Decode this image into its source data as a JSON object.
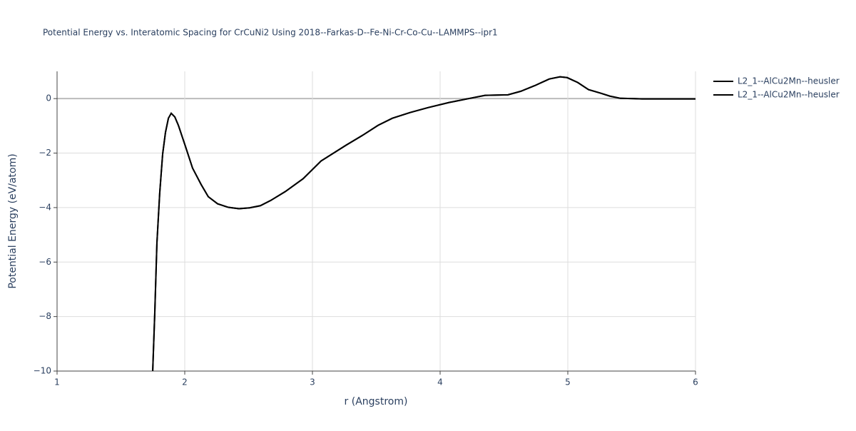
{
  "chart_data": {
    "type": "line",
    "title": "Potential Energy vs. Interatomic Spacing for CrCuNi2 Using 2018--Farkas-D--Fe-Ni-Cr-Co-Cu--LAMMPS--ipr1",
    "x_label": "r (Angstrom)",
    "y_label": "Potential Energy (eV/atom)",
    "x": [
      1.749,
      1.765,
      1.782,
      1.804,
      1.827,
      1.849,
      1.872,
      1.894,
      1.922,
      1.95,
      2.006,
      2.061,
      2.128,
      2.184,
      2.257,
      2.341,
      2.425,
      2.508,
      2.592,
      2.676,
      2.788,
      2.927,
      3.067,
      3.263,
      3.402,
      3.514,
      3.626,
      3.765,
      3.905,
      4.073,
      4.212,
      4.352,
      4.531,
      4.632,
      4.743,
      4.855,
      4.939,
      4.995,
      5.078,
      5.162,
      5.257,
      5.33,
      5.413,
      5.581,
      6.0
    ],
    "series": [
      {
        "name": "L2_1--AlCu2Mn--heusler",
        "color": "#000000",
        "values": [
          -10,
          -7.9,
          -5.3,
          -3.46,
          -2.03,
          -1.24,
          -0.72,
          -0.54,
          -0.67,
          -0.98,
          -1.76,
          -2.55,
          -3.15,
          -3.6,
          -3.86,
          -3.99,
          -4.04,
          -4.01,
          -3.93,
          -3.73,
          -3.41,
          -2.94,
          -2.29,
          -1.71,
          -1.32,
          -0.98,
          -0.72,
          -0.51,
          -0.33,
          -0.14,
          -0.01,
          0.12,
          0.14,
          0.27,
          0.48,
          0.72,
          0.8,
          0.77,
          0.59,
          0.33,
          0.2,
          0.09,
          0.01,
          -0.01,
          -0.01
        ]
      },
      {
        "name": "L2_1--AlCu2Mn--heusler",
        "color": "#000000",
        "values": [
          -10,
          -7.9,
          -5.3,
          -3.46,
          -2.03,
          -1.24,
          -0.72,
          -0.54,
          -0.67,
          -0.98,
          -1.76,
          -2.55,
          -3.15,
          -3.6,
          -3.86,
          -3.99,
          -4.04,
          -4.01,
          -3.93,
          -3.73,
          -3.41,
          -2.94,
          -2.29,
          -1.71,
          -1.32,
          -0.98,
          -0.72,
          -0.51,
          -0.33,
          -0.14,
          -0.01,
          0.12,
          0.14,
          0.27,
          0.48,
          0.72,
          0.8,
          0.77,
          0.59,
          0.33,
          0.2,
          0.09,
          0.01,
          -0.01,
          -0.01
        ]
      }
    ],
    "xlim": [
      1,
      6
    ],
    "xticks": [
      1,
      2,
      3,
      4,
      5,
      6
    ],
    "ylim": [
      -10,
      1
    ],
    "yticks": [
      {
        "value": -10,
        "label": "−10"
      },
      {
        "value": -8,
        "label": "−8"
      },
      {
        "value": -6,
        "label": "−6"
      },
      {
        "value": -4,
        "label": "−4"
      },
      {
        "value": -2,
        "label": "−2"
      },
      0
    ],
    "grid": true,
    "legend": "right"
  }
}
